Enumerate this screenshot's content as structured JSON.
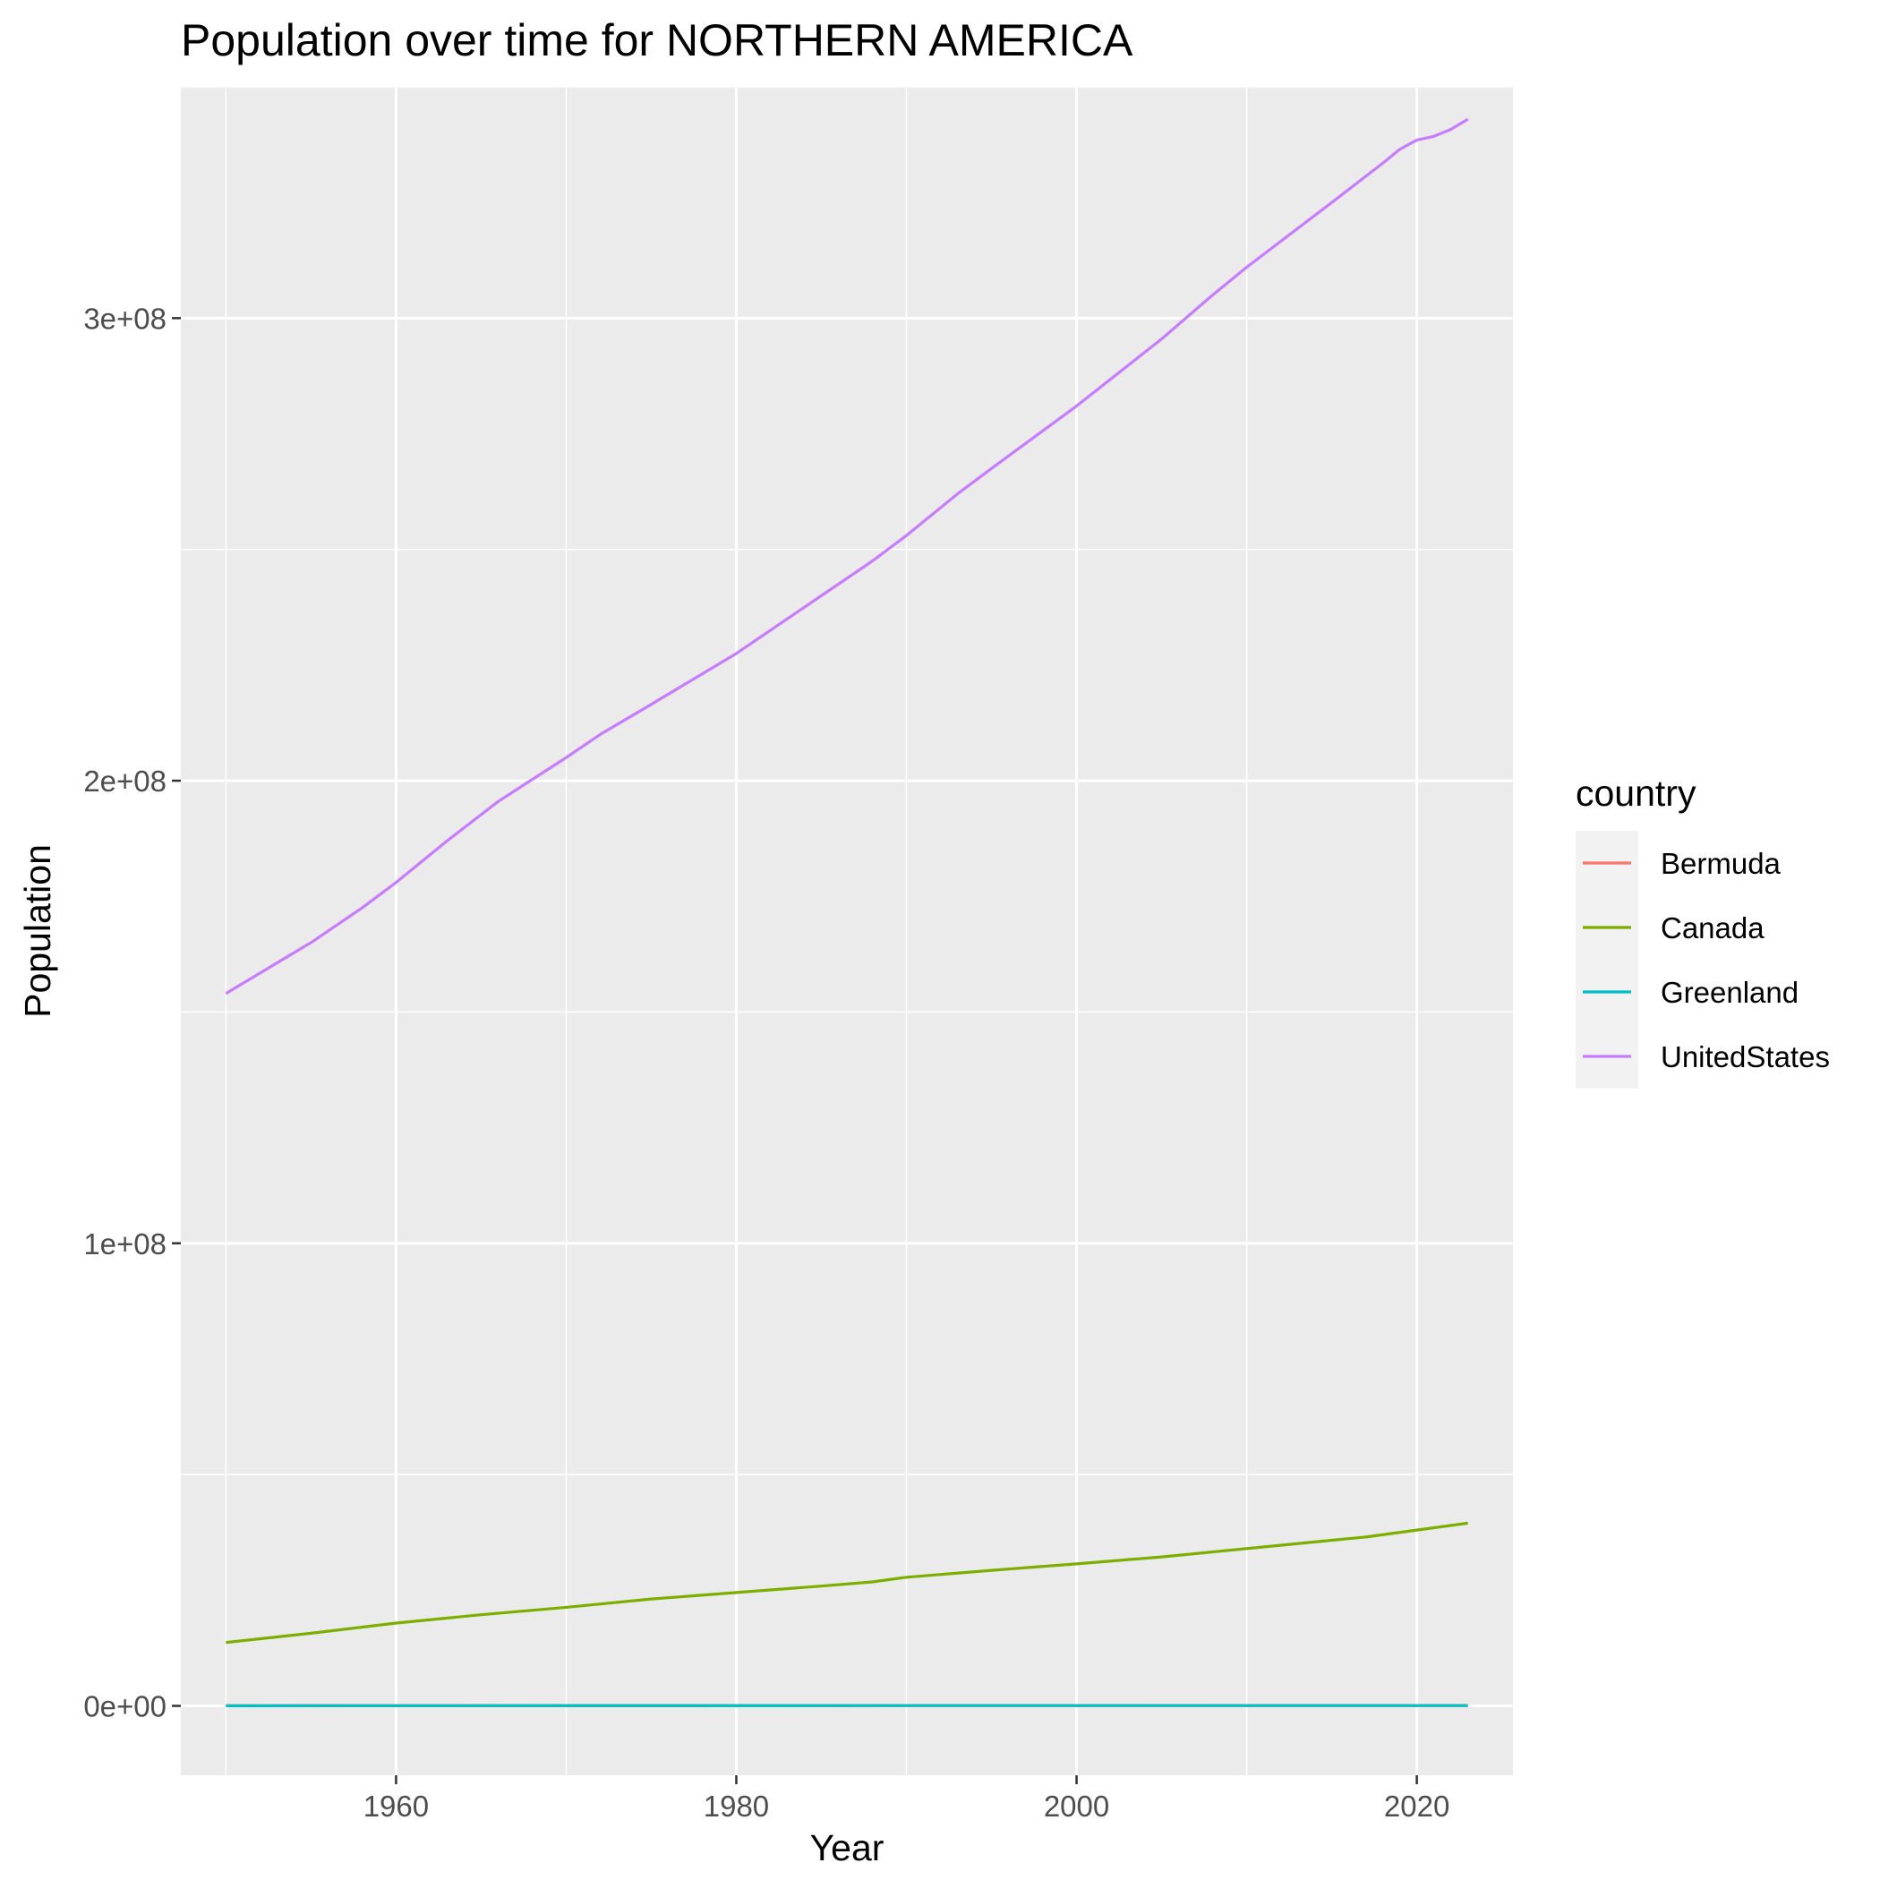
{
  "chart_data": {
    "type": "line",
    "title": "Population over time for NORTHERN AMERICA",
    "xlabel": "Year",
    "ylabel": "Population",
    "xlim": [
      1947.35,
      2025.65
    ],
    "ylim": [
      -15000000,
      350000000
    ],
    "x_ticks": [
      1960,
      1980,
      2000,
      2020
    ],
    "x_tick_labels": [
      "1960",
      "1980",
      "2000",
      "2020"
    ],
    "y_ticks": [
      0,
      100000000,
      200000000,
      300000000
    ],
    "y_tick_labels": [
      "0e+00",
      "1e+08",
      "2e+08",
      "3e+08"
    ],
    "grid": true,
    "legend": {
      "title": "country",
      "position": "right"
    },
    "series": [
      {
        "name": "Bermuda",
        "color": "#F8766D",
        "points": [
          [
            1950,
            37000
          ],
          [
            1960,
            44000
          ],
          [
            1970,
            52000
          ],
          [
            1980,
            55000
          ],
          [
            1990,
            59000
          ],
          [
            2000,
            62000
          ],
          [
            2010,
            64000
          ],
          [
            2020,
            64000
          ],
          [
            2023,
            64000
          ]
        ]
      },
      {
        "name": "Canada",
        "color": "#7CAE00",
        "points": [
          [
            1950,
            13700000
          ],
          [
            1955,
            15700000
          ],
          [
            1960,
            17900000
          ],
          [
            1965,
            19700000
          ],
          [
            1970,
            21300000
          ],
          [
            1975,
            23100000
          ],
          [
            1980,
            24500000
          ],
          [
            1985,
            25900000
          ],
          [
            1988,
            26800000
          ],
          [
            1990,
            27800000
          ],
          [
            1995,
            29300000
          ],
          [
            2000,
            30700000
          ],
          [
            2005,
            32200000
          ],
          [
            2010,
            34000000
          ],
          [
            2015,
            35800000
          ],
          [
            2017,
            36500000
          ],
          [
            2020,
            38000000
          ],
          [
            2023,
            39500000
          ]
        ]
      },
      {
        "name": "Greenland",
        "color": "#00BFC4",
        "points": [
          [
            1950,
            23000
          ],
          [
            1960,
            33000
          ],
          [
            1970,
            46000
          ],
          [
            1980,
            50000
          ],
          [
            1990,
            56000
          ],
          [
            2000,
            56000
          ],
          [
            2010,
            57000
          ],
          [
            2020,
            56000
          ],
          [
            2023,
            56000
          ]
        ]
      },
      {
        "name": "UnitedStates",
        "color": "#C77CFF",
        "points": [
          [
            1950,
            154000000
          ],
          [
            1955,
            165000000
          ],
          [
            1958,
            172500000
          ],
          [
            1960,
            178000000
          ],
          [
            1963,
            187000000
          ],
          [
            1966,
            195500000
          ],
          [
            1970,
            205000000
          ],
          [
            1972,
            210000000
          ],
          [
            1975,
            216500000
          ],
          [
            1980,
            227500000
          ],
          [
            1985,
            240000000
          ],
          [
            1988,
            247500000
          ],
          [
            1990,
            253000000
          ],
          [
            1993,
            262000000
          ],
          [
            1995,
            267500000
          ],
          [
            2000,
            281000000
          ],
          [
            2005,
            295500000
          ],
          [
            2008,
            305000000
          ],
          [
            2010,
            311000000
          ],
          [
            2015,
            325000000
          ],
          [
            2018,
            333500000
          ],
          [
            2019,
            336500000
          ],
          [
            2020,
            338500000
          ],
          [
            2021,
            339300000
          ],
          [
            2022,
            340800000
          ],
          [
            2023,
            343000000
          ]
        ]
      }
    ]
  }
}
